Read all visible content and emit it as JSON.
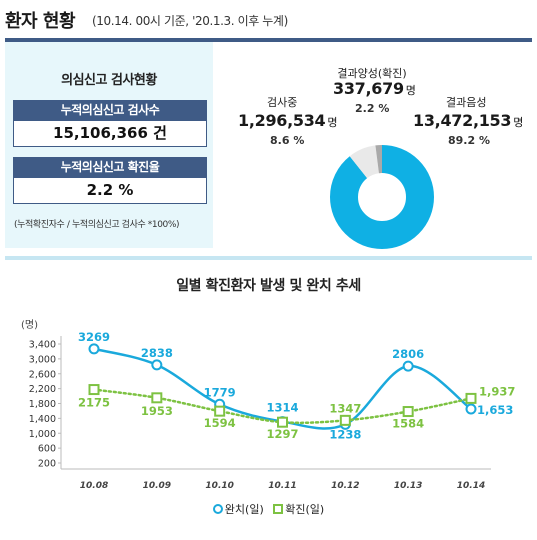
{
  "header": {
    "title": "환자 현황",
    "subtitle": "(10.14. 00시 기준, '20.1.3. 이후 누계)"
  },
  "test_summary": {
    "title": "의심신고 검사현황",
    "total_label": "누적의심신고 검사수",
    "total_value": "15,106,366 건",
    "rate_label": "누적의심신고 확진율",
    "rate_value": "2.2 %",
    "footnote": "(누적확진자수 / 누적의심신고 검사수 *100%)"
  },
  "donut": {
    "unit": "명",
    "colors": {
      "negative": "#0fb0e4",
      "testing": "#e9e9e9",
      "positive": "#a9a9a9"
    },
    "segments": [
      {
        "key": "positive",
        "label": "결과양성(확진)",
        "value": "337,679",
        "percent": "2.2 %",
        "share": 0.022
      },
      {
        "key": "testing",
        "label": "검사중",
        "value": "1,296,534",
        "percent": "8.6 %",
        "share": 0.086
      },
      {
        "key": "negative",
        "label": "결과음성",
        "value": "13,472,153",
        "percent": "89.2 %",
        "share": 0.892
      }
    ]
  },
  "chart_data": {
    "type": "line",
    "title": "일별 확진환자 발생 및 완치 추세",
    "ylabel": "(명)",
    "categories": [
      "10.08",
      "10.09",
      "10.10",
      "10.11",
      "10.12",
      "10.13",
      "10.14"
    ],
    "y_ticks": [
      "3,400",
      "3,000",
      "2,600",
      "2,200",
      "1,800",
      "1,400",
      "1,000",
      "600",
      "200"
    ],
    "ylim": [
      200,
      3400
    ],
    "grid": false,
    "legend_position": "bottom",
    "series": [
      {
        "key": "recovered",
        "name": "완치(일)",
        "color": "#1aa9dc",
        "marker": "circle",
        "style": "solid",
        "values": [
          3269,
          2838,
          1779,
          1314,
          1238,
          2806,
          1653
        ],
        "labels": [
          "3269",
          "2838",
          "1779",
          "1314",
          "1238",
          "2806",
          "1,653"
        ]
      },
      {
        "key": "confirmed",
        "name": "확진(일)",
        "color": "#7dc242",
        "marker": "square",
        "style": "dotted",
        "values": [
          2175,
          1953,
          1594,
          1297,
          1347,
          1584,
          1937
        ],
        "labels": [
          "2175",
          "1953",
          "1594",
          "1297",
          "1347",
          "1584",
          "1,937"
        ]
      }
    ]
  }
}
